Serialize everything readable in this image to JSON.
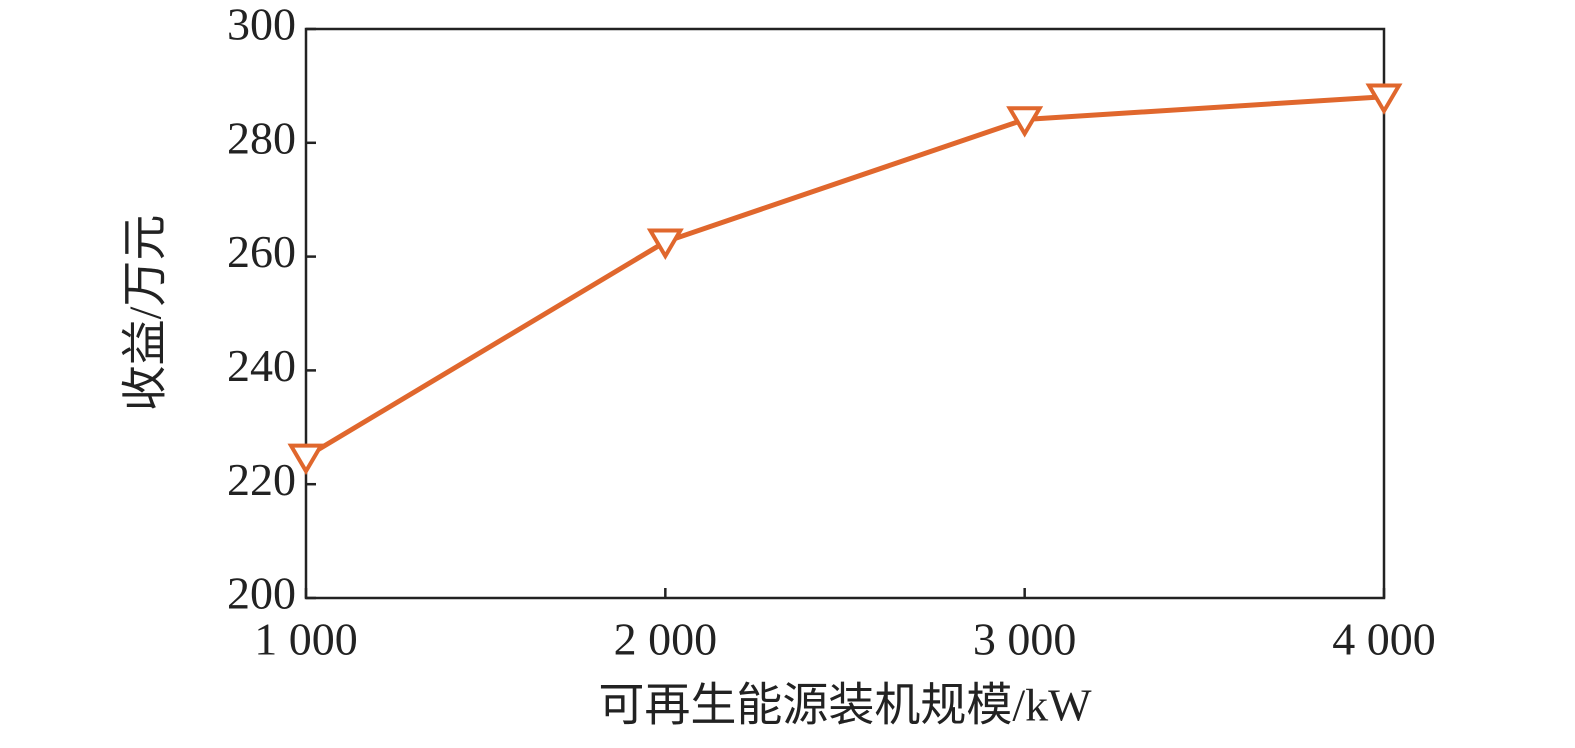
{
  "chart_data": {
    "type": "line",
    "x_label": "可再生能源装机规模/kW",
    "y_label": "收益/万元",
    "x": [
      1000,
      2000,
      3000,
      4000
    ],
    "series": [
      {
        "color": "#e0672d",
        "values": [
          224.8,
          262.6,
          284.1,
          288.1
        ]
      }
    ],
    "xlim": [
      1000,
      4000
    ],
    "xticks": [
      {
        "value": 1000,
        "label": "1 000"
      },
      {
        "value": 2000,
        "label": "2 000"
      },
      {
        "value": 3000,
        "label": "3 000"
      },
      {
        "value": 4000,
        "label": "4 000"
      }
    ],
    "ylim": [
      200,
      300
    ],
    "yticks": [
      200,
      220,
      240,
      260,
      280,
      300
    ],
    "marker": "triangle-down"
  }
}
